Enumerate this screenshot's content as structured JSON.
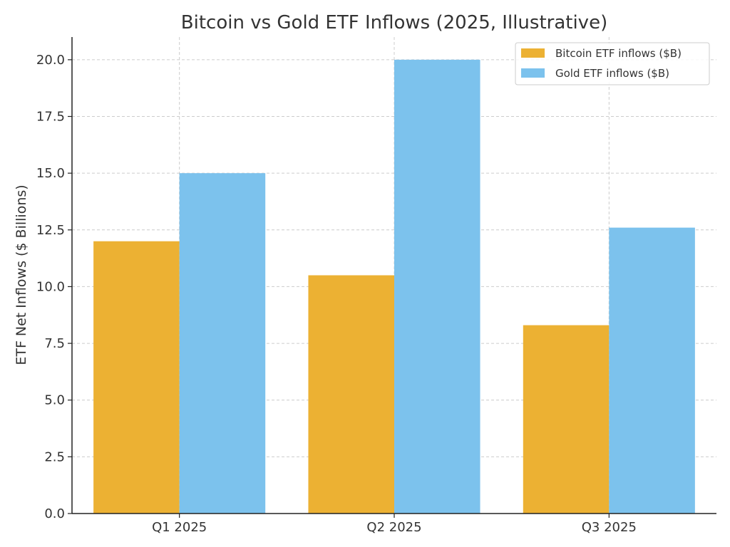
{
  "chart_data": {
    "type": "bar",
    "title": "Bitcoin vs Gold ETF Inflows (2025, Illustrative)",
    "xlabel": "",
    "ylabel": "ETF Net Inflows ($ Billions)",
    "categories": [
      "Q1 2025",
      "Q2 2025",
      "Q3 2025"
    ],
    "series": [
      {
        "name": "Bitcoin ETF inflows ($B)",
        "values": [
          12.0,
          10.5,
          8.3
        ],
        "color": "#ecb133"
      },
      {
        "name": "Gold ETF inflows ($B)",
        "values": [
          15.0,
          20.0,
          12.6
        ],
        "color": "#7cc2ed"
      }
    ],
    "ylim": [
      0,
      21
    ],
    "yticks": [
      "0.0",
      "2.5",
      "5.0",
      "7.5",
      "10.0",
      "12.5",
      "15.0",
      "17.5",
      "20.0"
    ],
    "grid": true,
    "legend_position": "top-right"
  }
}
